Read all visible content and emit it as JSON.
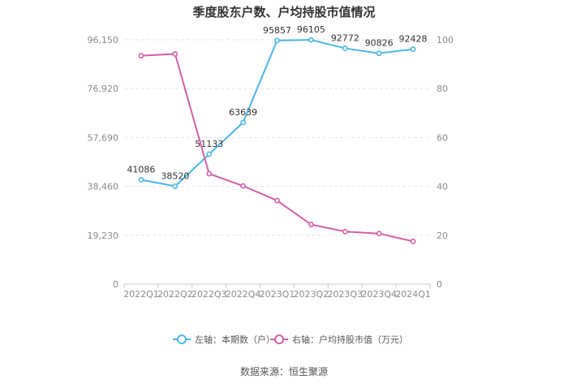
{
  "chart_data": {
    "type": "line",
    "title": "季度股东户数、户均持股市值情况",
    "categories": [
      "2022Q1",
      "2022Q2",
      "2022Q3",
      "2022Q4",
      "2023Q1",
      "2023Q2",
      "2023Q3",
      "2023Q4",
      "2024Q1"
    ],
    "left_axis": {
      "ticks": [
        "0",
        "19,230",
        "38,460",
        "57,690",
        "76,920",
        "96,150"
      ],
      "ylim": [
        0,
        96150
      ]
    },
    "right_axis": {
      "ticks": [
        "0",
        "20",
        "40",
        "60",
        "80",
        "100"
      ],
      "ylim": [
        0,
        100
      ]
    },
    "series": [
      {
        "name": "左轴：本期数（户）",
        "axis": "left",
        "color": "#4db6e8",
        "values": [
          41086,
          38520,
          51133,
          63639,
          95857,
          96105,
          92772,
          90826,
          92428
        ],
        "labels": [
          "41086",
          "38520",
          "51133",
          "63639",
          "95857",
          "96105",
          "92772",
          "90826",
          "92428"
        ]
      },
      {
        "name": "右轴：户均持股市值（万元）",
        "axis": "right",
        "color": "#d35fa7",
        "values": [
          93.5,
          94.2,
          45.2,
          40.2,
          34.2,
          24.4,
          21.5,
          20.7,
          17.5
        ]
      }
    ],
    "grid": true,
    "legend_position": "bottom"
  },
  "source_text": "数据来源：恒生聚源"
}
